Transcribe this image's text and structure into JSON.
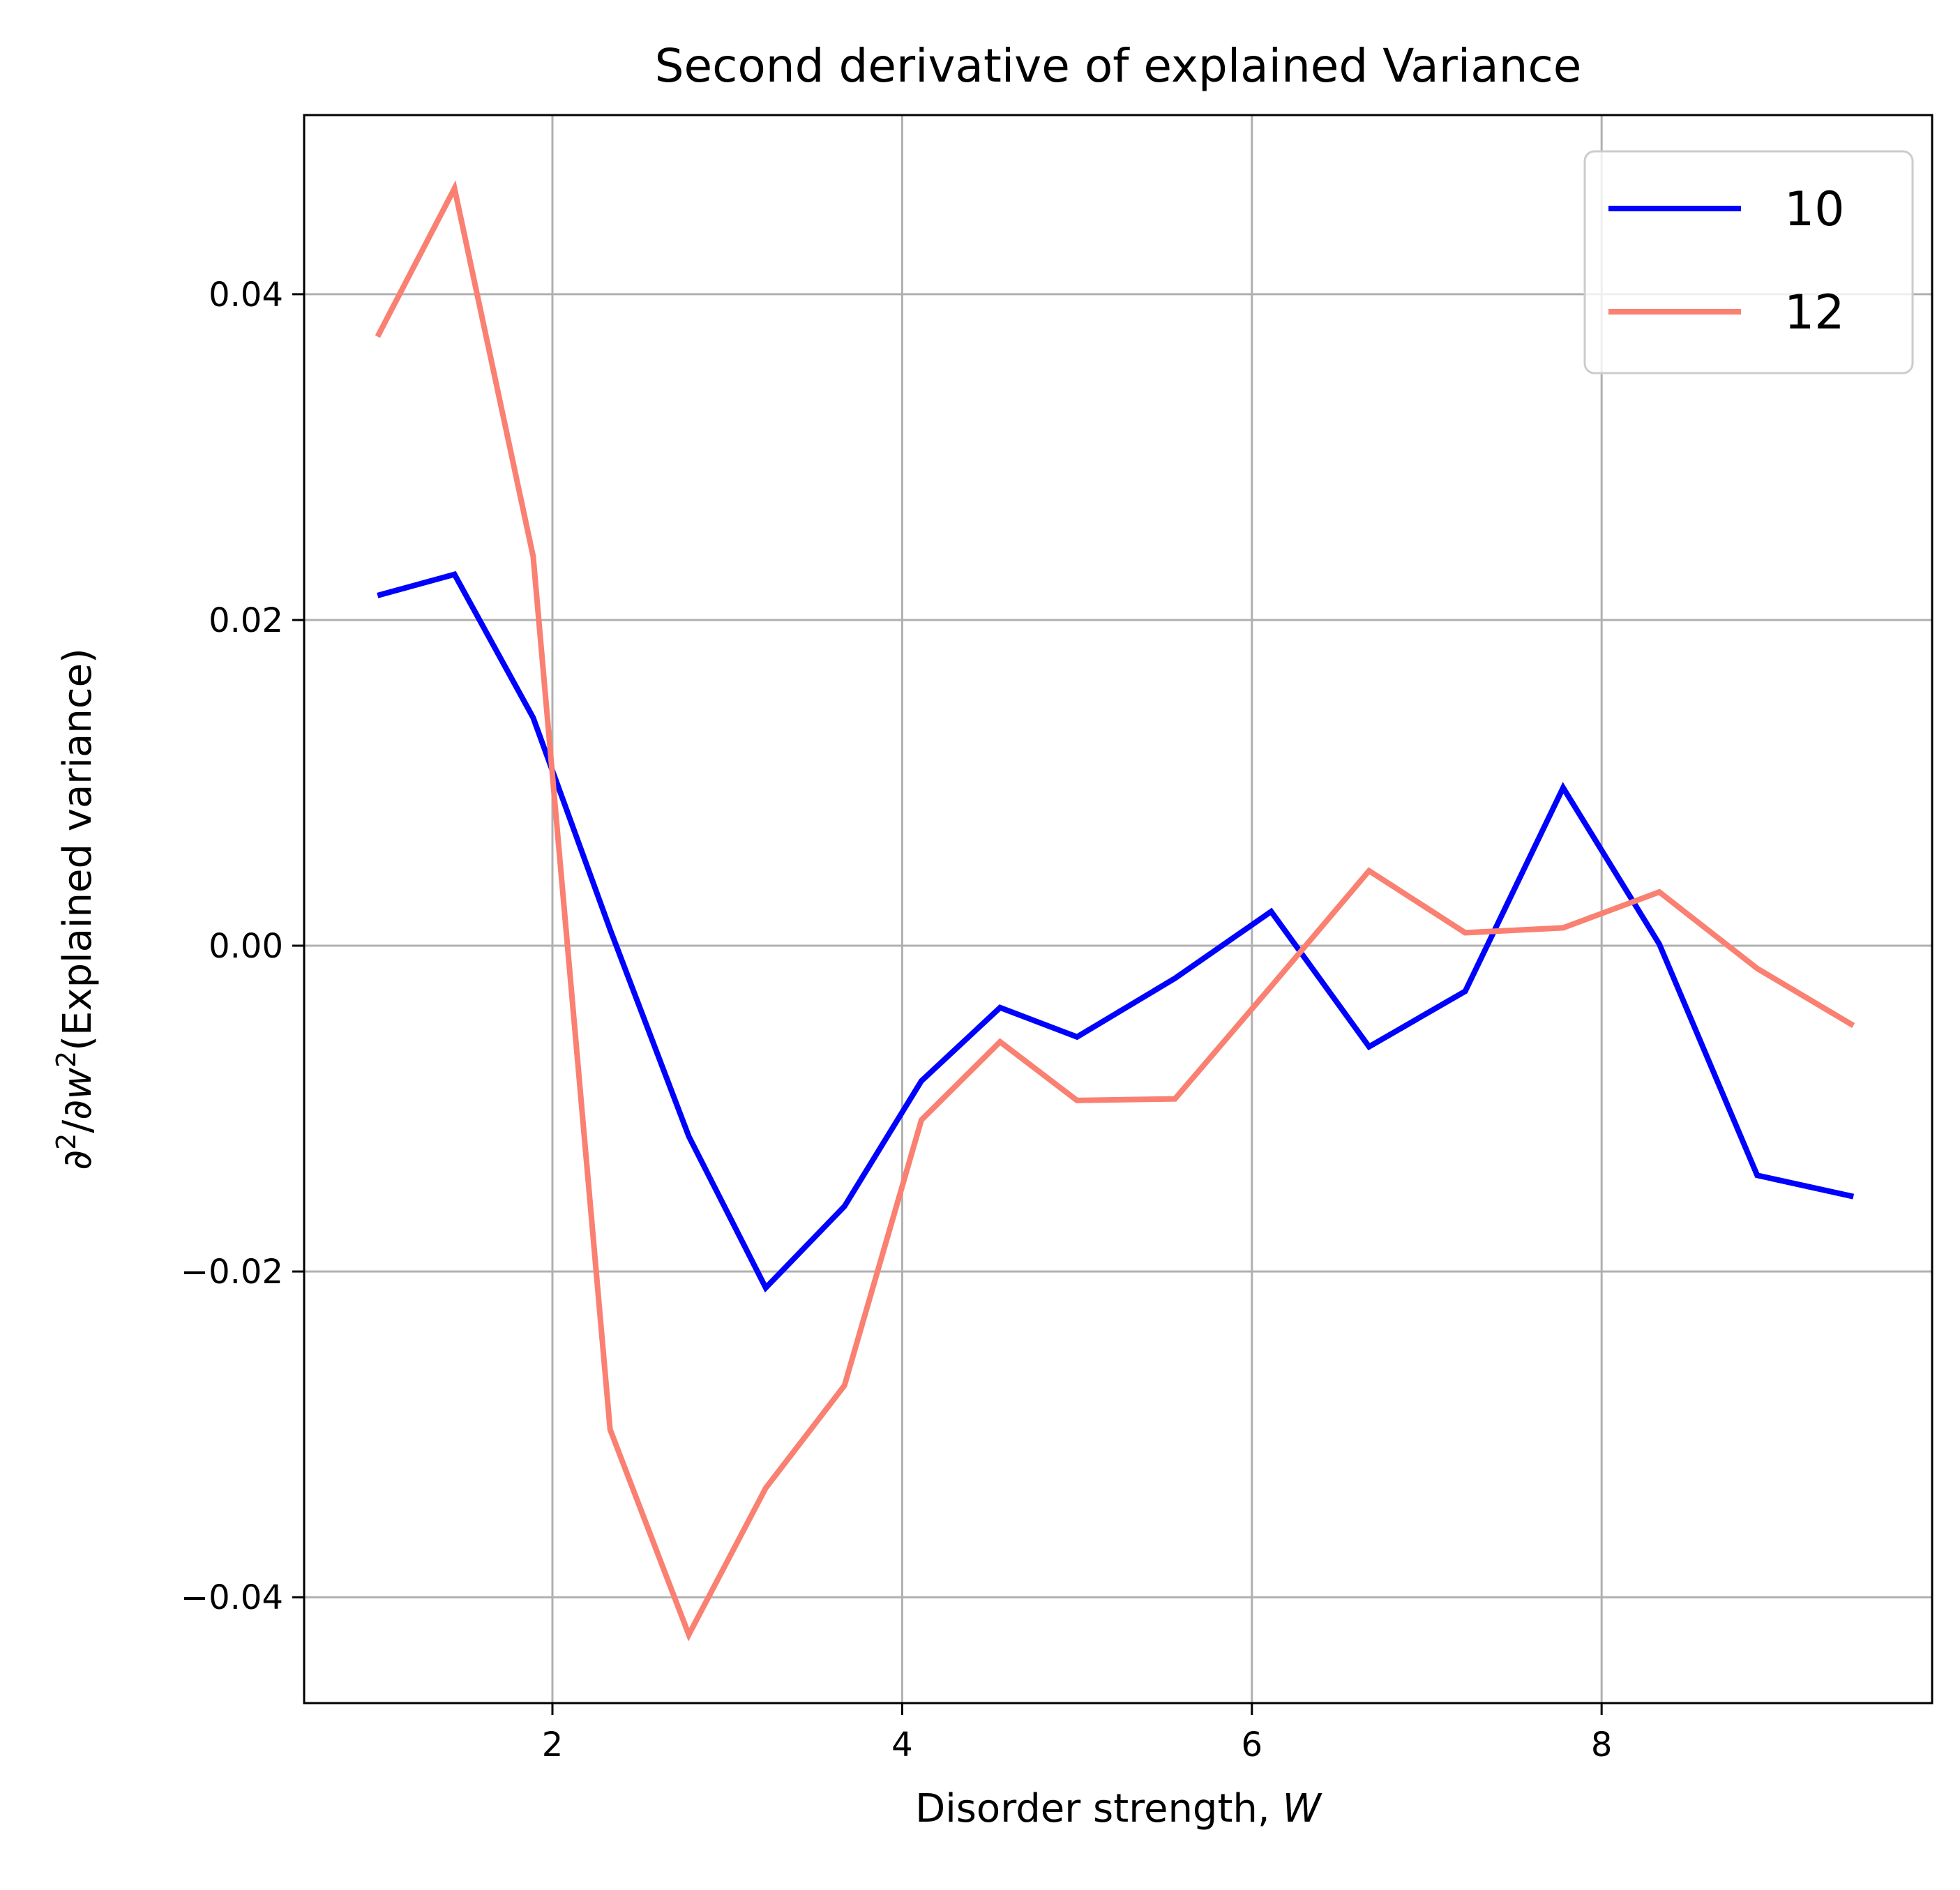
{
  "chart_data": {
    "type": "line",
    "title": "Second derivative of explained Variance",
    "xlabel_text": "Disorder strength, ",
    "xlabel_var": "W",
    "ylabel_prefix": "∂",
    "ylabel_exp1": "2",
    "ylabel_mid": "/∂",
    "ylabel_var": "w",
    "ylabel_exp2": "2",
    "ylabel_suffix": "(Explained variance)",
    "xlim": [
      0.58,
      9.89
    ],
    "ylim": [
      -0.0465,
      0.051
    ],
    "x_ticks": [
      2,
      4,
      6,
      8
    ],
    "x_tick_labels": [
      "2",
      "4",
      "6",
      "8"
    ],
    "y_ticks": [
      -0.04,
      -0.02,
      0.0,
      0.02,
      0.04
    ],
    "y_tick_labels": [
      "−0.04",
      "−0.02",
      "0.00",
      "0.02",
      "0.04"
    ],
    "grid": true,
    "legend_position": "top-right",
    "series": [
      {
        "name": "10",
        "color": "#0000ff",
        "x": [
          1.0,
          1.44,
          1.89,
          2.33,
          2.78,
          3.22,
          3.67,
          4.11,
          4.56,
          5.0,
          5.56,
          6.11,
          6.67,
          7.22,
          7.78,
          8.33,
          8.89,
          9.44
        ],
        "y": [
          0.0215,
          0.0228,
          0.014,
          0.001,
          -0.0117,
          -0.021,
          -0.016,
          -0.0083,
          -0.0038,
          -0.0056,
          -0.002,
          0.0021,
          -0.0062,
          -0.0028,
          0.0097,
          0.0001,
          -0.0141,
          -0.0154
        ]
      },
      {
        "name": "12",
        "color": "#fa8072",
        "x": [
          1.0,
          1.44,
          1.89,
          2.33,
          2.78,
          3.22,
          3.67,
          4.11,
          4.56,
          5.0,
          5.56,
          6.11,
          6.67,
          7.22,
          7.78,
          8.33,
          8.89,
          9.44
        ],
        "y": [
          0.0374,
          0.0465,
          0.0239,
          -0.0297,
          -0.0423,
          -0.0333,
          -0.027,
          -0.0107,
          -0.0059,
          -0.0095,
          -0.0094,
          -0.0025,
          0.0046,
          0.0008,
          0.0011,
          0.0033,
          -0.0014,
          -0.0049
        ]
      }
    ]
  }
}
